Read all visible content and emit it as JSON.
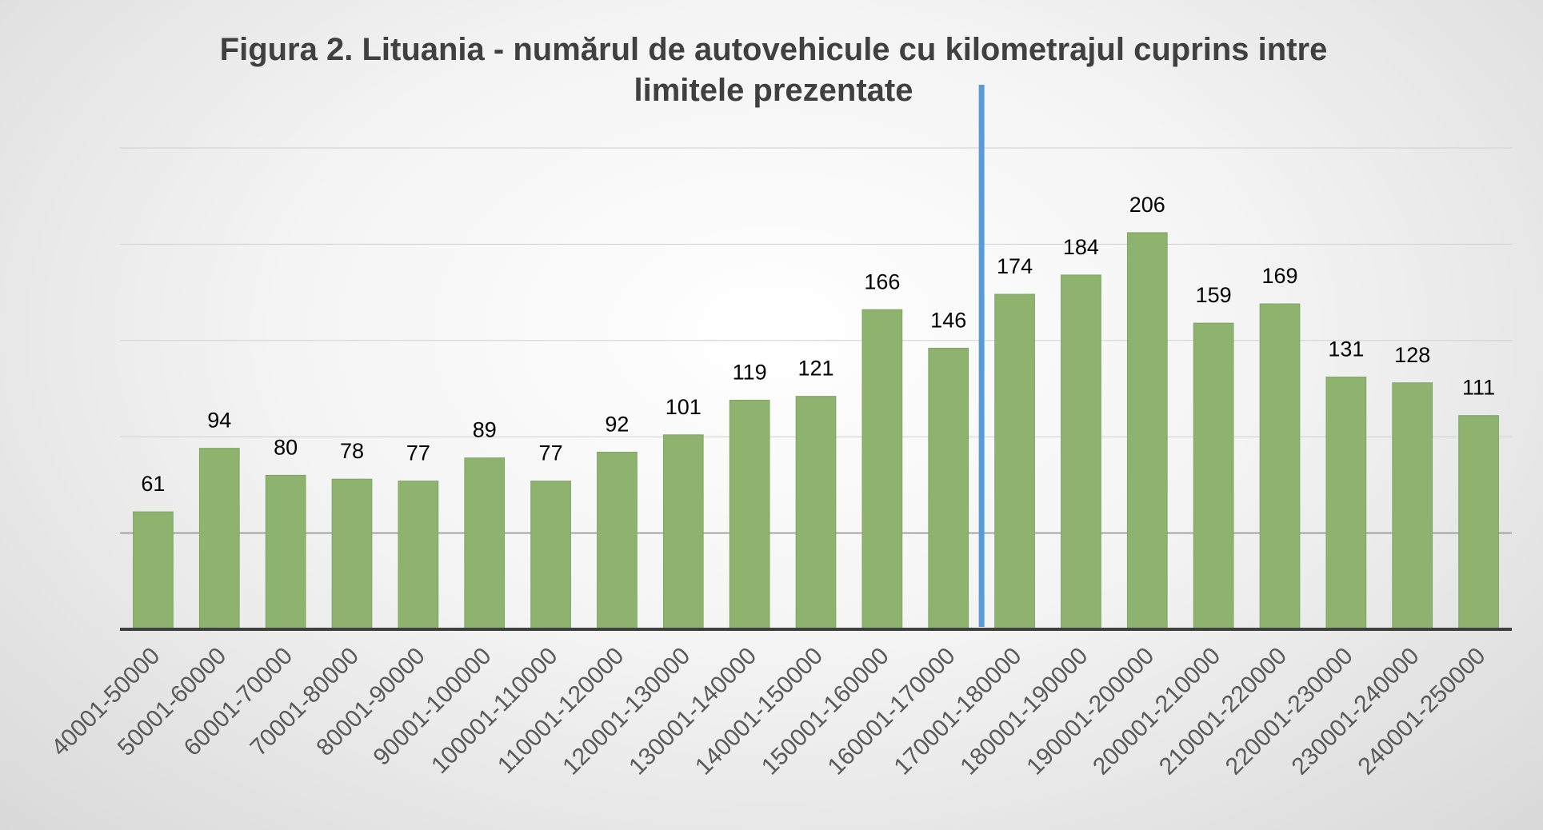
{
  "chart_data": {
    "type": "bar",
    "title_lines": [
      "Figura 2. Lituania - numărul de autovehicule cu kilometrajul cuprins intre",
      "limitele prezentate"
    ],
    "categories": [
      "40001-50000",
      "50001-60000",
      "60001-70000",
      "70001-80000",
      "80001-90000",
      "90001-100000",
      "100001-110000",
      "110001-120000",
      "120001-130000",
      "130001-140000",
      "140001-150000",
      "150001-160000",
      "160001-170000",
      "170001-180000",
      "180001-190000",
      "190001-200000",
      "200001-210000",
      "210001-220000",
      "220001-230000",
      "230001-240000",
      "240001-250000"
    ],
    "series": [
      {
        "values": [
          61,
          94,
          80,
          78,
          77,
          89,
          77,
          92,
          101,
          119,
          121,
          166,
          146,
          174,
          184,
          206,
          159,
          169,
          131,
          128,
          111
        ]
      }
    ],
    "ylim": [
      0,
      250
    ],
    "y_gridlines": [
      50,
      100,
      150,
      200,
      250
    ],
    "y_tick_labels_shown": false,
    "data_labels": true,
    "legend": "none",
    "reference_line": {
      "between_categories": [
        "160001-170000",
        "170001-180000"
      ],
      "color": "#5b9bd5"
    },
    "colors": {
      "bar": "#8db36e",
      "bar_edge": "#7fa563",
      "grid": "#d0d0d0",
      "axis": "#404040",
      "title": "#404040"
    }
  }
}
